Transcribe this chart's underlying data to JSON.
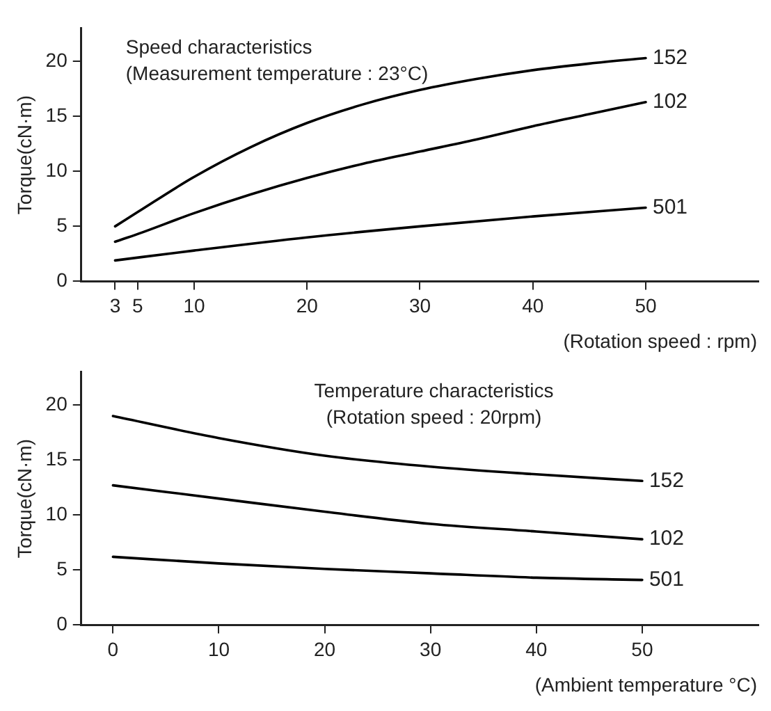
{
  "chart_data": [
    {
      "type": "line",
      "title": "Speed characteristics",
      "subtitle": "(Measurement temperature : 23°C)",
      "xlabel": "(Rotation speed : rpm)",
      "ylabel": "Torque(cN·m)",
      "xlim": [
        0,
        60
      ],
      "xticks": [
        3,
        5,
        10,
        20,
        30,
        40,
        50
      ],
      "ylim": [
        0,
        23
      ],
      "yticks": [
        0,
        5,
        10,
        15,
        20
      ],
      "grid": false,
      "legend": false,
      "marker": "none",
      "line_style": "solid",
      "series": [
        {
          "name": "152",
          "color": "#000000",
          "x": [
            3,
            5,
            10,
            15,
            20,
            25,
            30,
            35,
            40,
            45,
            50
          ],
          "values": [
            5,
            6.3,
            9.5,
            12.2,
            14.4,
            16.1,
            17.4,
            18.4,
            19.2,
            19.8,
            20.3
          ]
        },
        {
          "name": "102",
          "color": "#000000",
          "x": [
            3,
            5,
            10,
            15,
            20,
            25,
            30,
            35,
            40,
            45,
            50
          ],
          "values": [
            3.6,
            4.3,
            6.2,
            7.9,
            9.4,
            10.7,
            11.8,
            12.9,
            14.1,
            15.2,
            16.3
          ]
        },
        {
          "name": "501",
          "color": "#000000",
          "x": [
            3,
            10,
            20,
            30,
            40,
            50
          ],
          "values": [
            1.9,
            2.8,
            4.0,
            5.0,
            5.9,
            6.7
          ]
        }
      ]
    },
    {
      "type": "line",
      "title": "Temperature characteristics",
      "subtitle": "(Rotation speed : 20rpm)",
      "xlabel": "(Ambient temperature °C)",
      "ylabel": "Torque(cN·m)",
      "xlim": [
        -3,
        61
      ],
      "xticks": [
        0,
        10,
        20,
        30,
        40,
        50
      ],
      "ylim": [
        0,
        23
      ],
      "yticks": [
        0,
        5,
        10,
        15,
        20
      ],
      "grid": false,
      "legend": false,
      "marker": "none",
      "line_style": "solid",
      "series": [
        {
          "name": "152",
          "color": "#000000",
          "x": [
            0,
            10,
            20,
            30,
            40,
            50
          ],
          "values": [
            19.0,
            17.0,
            15.4,
            14.4,
            13.7,
            13.1
          ]
        },
        {
          "name": "102",
          "color": "#000000",
          "x": [
            0,
            10,
            20,
            30,
            40,
            50
          ],
          "values": [
            12.7,
            11.5,
            10.3,
            9.2,
            8.5,
            7.8
          ]
        },
        {
          "name": "501",
          "color": "#000000",
          "x": [
            0,
            10,
            20,
            30,
            40,
            50
          ],
          "values": [
            6.2,
            5.6,
            5.1,
            4.7,
            4.3,
            4.1
          ]
        }
      ]
    }
  ]
}
